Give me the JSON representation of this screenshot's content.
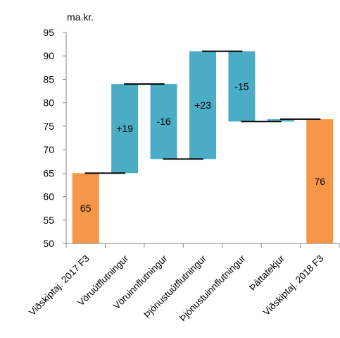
{
  "chart_data": {
    "type": "bar",
    "subtype": "waterfall",
    "unit_label": "ma.kr.",
    "ylim": [
      50,
      95
    ],
    "yticks": [
      50,
      55,
      60,
      65,
      70,
      75,
      80,
      85,
      90,
      95
    ],
    "grid": false,
    "legend": "none",
    "categories": [
      "Viðskiptaj. 2017 F3",
      "Vöruútflutningur",
      "Vöruinnflutningur",
      "Þjónustuútflutningur",
      "Þjónustuinnflutningur",
      "Þáttatekjur",
      "Viðskiptaj. 2018 F3"
    ],
    "bars": [
      {
        "kind": "total",
        "start": 50,
        "end": 65,
        "label": "65"
      },
      {
        "kind": "increase",
        "start": 65,
        "end": 84,
        "label": "+19"
      },
      {
        "kind": "decrease",
        "start": 84,
        "end": 68,
        "label": "-16"
      },
      {
        "kind": "increase",
        "start": 68,
        "end": 91,
        "label": "+23"
      },
      {
        "kind": "decrease",
        "start": 91,
        "end": 76,
        "label": "-15"
      },
      {
        "kind": "change",
        "start": 76,
        "end": 76.5,
        "label": ""
      },
      {
        "kind": "total",
        "start": 50,
        "end": 76.5,
        "label": "76"
      }
    ],
    "connector_levels": [
      65,
      84,
      68,
      91,
      76,
      76.5
    ],
    "colors": {
      "total": "#F79646",
      "change": "#4BACC6",
      "connector": "#000000",
      "axis": "#868686"
    }
  }
}
